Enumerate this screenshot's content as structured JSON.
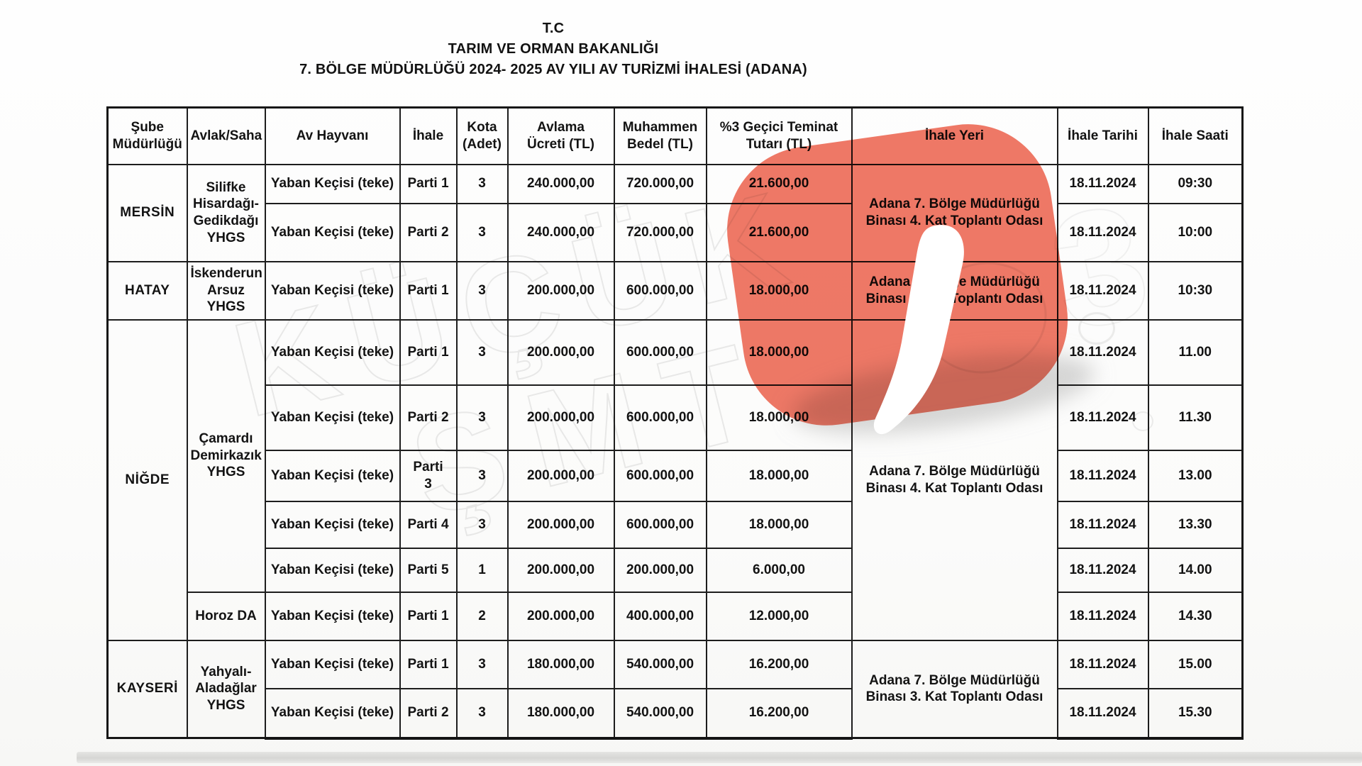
{
  "page": {
    "header": {
      "line1": "T.C",
      "line2": "TARIM VE ORMAN BAKANLIĞI",
      "line3": "7. BÖLGE MÜDÜRLÜĞÜ 2024- 2025 AV YILI AV TURİZMİ İHALESİ (ADANA)"
    },
    "watermark": {
      "text_line1": "KÜÇÜK",
      "text_line2": "ŞMT",
      "ghost_digit": "3",
      "logo_color": "#ef6a56"
    },
    "table": {
      "columns": [
        "Şube\nMüdürlüğü",
        "Avlak/Saha",
        "Av Hayvanı",
        "İhale",
        "Kota\n(Adet)",
        "Avlama\nÜcreti (TL)",
        "Muhammen\nBedel (TL)",
        "%3 Geçici Teminat\nTutarı (TL)",
        "İhale Yeri",
        "İhale Tarihi",
        "İhale Saati"
      ],
      "rows": [
        [
          {
            "t": "MERSİN",
            "rs": 2,
            "n": "branch"
          },
          {
            "t": "Silifke\nHisardağı-\nGedikdağı\nYHGS",
            "rs": 2,
            "n": "area"
          },
          {
            "t": "Yaban Keçisi (teke)",
            "n": "animal"
          },
          {
            "t": "Parti 1",
            "n": "lot"
          },
          {
            "t": "3",
            "n": "quota"
          },
          {
            "t": "240.000,00",
            "n": "fee"
          },
          {
            "t": "720.000,00",
            "n": "estimated"
          },
          {
            "t": "21.600,00",
            "n": "deposit"
          },
          {
            "t": "Adana 7. Bölge Müdürlüğü\nBinası 4. Kat Toplantı Odası",
            "rs": 2,
            "n": "venue"
          },
          {
            "t": "18.11.2024",
            "n": "date"
          },
          {
            "t": "09:30",
            "n": "time"
          }
        ],
        [
          {
            "t": "Yaban Keçisi (teke)",
            "n": "animal"
          },
          {
            "t": "Parti 2",
            "n": "lot"
          },
          {
            "t": "3",
            "n": "quota"
          },
          {
            "t": "240.000,00",
            "n": "fee"
          },
          {
            "t": "720.000,00",
            "n": "estimated"
          },
          {
            "t": "21.600,00",
            "n": "deposit"
          },
          {
            "t": "18.11.2024",
            "n": "date"
          },
          {
            "t": "10:00",
            "n": "time"
          }
        ],
        [
          {
            "t": "HATAY",
            "n": "branch"
          },
          {
            "t": "İskenderun\nArsuz YHGS",
            "n": "area"
          },
          {
            "t": "Yaban Keçisi (teke)",
            "n": "animal"
          },
          {
            "t": "Parti 1",
            "n": "lot"
          },
          {
            "t": "3",
            "n": "quota"
          },
          {
            "t": "200.000,00",
            "n": "fee"
          },
          {
            "t": "600.000,00",
            "n": "estimated"
          },
          {
            "t": "18.000,00",
            "n": "deposit"
          },
          {
            "t": "Adana 7. Bölge Müdürlüğü\nBinası 3. Kat Toplantı Odası",
            "n": "venue"
          },
          {
            "t": "18.11.2024",
            "n": "date"
          },
          {
            "t": "10:30",
            "n": "time"
          }
        ],
        [
          {
            "t": "NİĞDE",
            "rs": 6,
            "n": "branch"
          },
          {
            "t": "Çamardı\nDemirkazık\nYHGS",
            "rs": 5,
            "n": "area"
          },
          {
            "t": "Yaban Keçisi (teke)",
            "n": "animal"
          },
          {
            "t": "Parti 1",
            "n": "lot"
          },
          {
            "t": "3",
            "n": "quota"
          },
          {
            "t": "200.000,00",
            "n": "fee"
          },
          {
            "t": "600.000,00",
            "n": "estimated"
          },
          {
            "t": "18.000,00",
            "n": "deposit"
          },
          {
            "t": "Adana 7. Bölge Müdürlüğü\nBinası 4. Kat Toplantı Odası",
            "rs": 6,
            "n": "venue"
          },
          {
            "t": "18.11.2024",
            "n": "date"
          },
          {
            "t": "11.00",
            "n": "time"
          }
        ],
        [
          {
            "t": "Yaban Keçisi (teke)",
            "n": "animal"
          },
          {
            "t": "Parti 2",
            "n": "lot"
          },
          {
            "t": "3",
            "n": "quota"
          },
          {
            "t": "200.000,00",
            "n": "fee"
          },
          {
            "t": "600.000,00",
            "n": "estimated"
          },
          {
            "t": "18.000,00",
            "n": "deposit"
          },
          {
            "t": "18.11.2024",
            "n": "date"
          },
          {
            "t": "11.30",
            "n": "time"
          }
        ],
        [
          {
            "t": "Yaban Keçisi (teke)",
            "n": "animal"
          },
          {
            "t": "Parti\n3",
            "n": "lot"
          },
          {
            "t": "3",
            "n": "quota"
          },
          {
            "t": "200.000,00",
            "n": "fee"
          },
          {
            "t": "600.000,00",
            "n": "estimated"
          },
          {
            "t": "18.000,00",
            "n": "deposit"
          },
          {
            "t": "18.11.2024",
            "n": "date"
          },
          {
            "t": "13.00",
            "n": "time"
          }
        ],
        [
          {
            "t": "Yaban Keçisi (teke)",
            "n": "animal"
          },
          {
            "t": "Parti 4",
            "n": "lot"
          },
          {
            "t": "3",
            "n": "quota"
          },
          {
            "t": "200.000,00",
            "n": "fee"
          },
          {
            "t": "600.000,00",
            "n": "estimated"
          },
          {
            "t": "18.000,00",
            "n": "deposit"
          },
          {
            "t": "18.11.2024",
            "n": "date"
          },
          {
            "t": "13.30",
            "n": "time"
          }
        ],
        [
          {
            "t": "Yaban Keçisi (teke)",
            "n": "animal"
          },
          {
            "t": "Parti 5",
            "n": "lot"
          },
          {
            "t": "1",
            "n": "quota"
          },
          {
            "t": "200.000,00",
            "n": "fee"
          },
          {
            "t": "200.000,00",
            "n": "estimated"
          },
          {
            "t": "6.000,00",
            "n": "deposit"
          },
          {
            "t": "18.11.2024",
            "n": "date"
          },
          {
            "t": "14.00",
            "n": "time"
          }
        ],
        [
          {
            "t": "Horoz DA",
            "n": "area"
          },
          {
            "t": "Yaban Keçisi (teke)",
            "n": "animal"
          },
          {
            "t": "Parti 1",
            "n": "lot"
          },
          {
            "t": "2",
            "n": "quota"
          },
          {
            "t": "200.000,00",
            "n": "fee"
          },
          {
            "t": "400.000,00",
            "n": "estimated"
          },
          {
            "t": "12.000,00",
            "n": "deposit"
          },
          {
            "t": "18.11.2024",
            "n": "date"
          },
          {
            "t": "14.30",
            "n": "time"
          }
        ],
        [
          {
            "t": "KAYSERİ",
            "rs": 2,
            "n": "branch"
          },
          {
            "t": "Yahyalı-\nAladağlar\nYHGS",
            "rs": 2,
            "n": "area"
          },
          {
            "t": "Yaban Keçisi (teke)",
            "n": "animal"
          },
          {
            "t": "Parti 1",
            "n": "lot"
          },
          {
            "t": "3",
            "n": "quota"
          },
          {
            "t": "180.000,00",
            "n": "fee"
          },
          {
            "t": "540.000,00",
            "n": "estimated"
          },
          {
            "t": "16.200,00",
            "n": "deposit"
          },
          {
            "t": "Adana 7. Bölge Müdürlüğü\nBinası 3. Kat Toplantı Odası",
            "rs": 2,
            "n": "venue"
          },
          {
            "t": "18.11.2024",
            "n": "date"
          },
          {
            "t": "15.00",
            "n": "time"
          }
        ],
        [
          {
            "t": "Yaban Keçisi (teke)",
            "n": "animal"
          },
          {
            "t": "Parti 2",
            "n": "lot"
          },
          {
            "t": "3",
            "n": "quota"
          },
          {
            "t": "180.000,00",
            "n": "fee"
          },
          {
            "t": "540.000,00",
            "n": "estimated"
          },
          {
            "t": "16.200,00",
            "n": "deposit"
          },
          {
            "t": "18.11.2024",
            "n": "date"
          },
          {
            "t": "15.30",
            "n": "time"
          }
        ]
      ]
    }
  }
}
